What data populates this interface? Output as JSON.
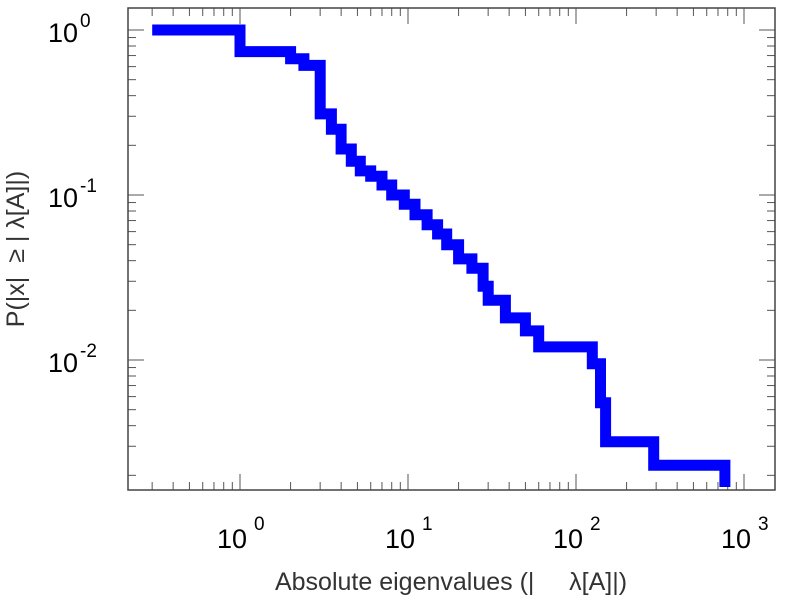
{
  "chart_data": {
    "type": "line",
    "title": "",
    "xlabel": "Absolute eigenvalues (|     λ[A]|)",
    "ylabel": "P(|x|  ≥ | λ[A]|)",
    "x_scale": "log",
    "y_scale": "log",
    "xlim": [
      0.2,
      1000
    ],
    "ylim": [
      0.0017,
      1.3
    ],
    "grid": false,
    "legend": "none",
    "x_ticks": [
      {
        "base": "10",
        "exp": "0",
        "value": 1
      },
      {
        "base": "10",
        "exp": "1",
        "value": 10
      },
      {
        "base": "10",
        "exp": "2",
        "value": 100
      },
      {
        "base": "10",
        "exp": "3",
        "value": 1000
      }
    ],
    "y_ticks": [
      {
        "base": "10",
        "exp": "0",
        "value": 1
      },
      {
        "base": "10",
        "exp": "-1",
        "value": 0.1
      },
      {
        "base": "10",
        "exp": "-2",
        "value": 0.01
      }
    ],
    "series": [
      {
        "color": "#0000ff",
        "step": true,
        "points": [
          [
            0.3,
            1.0
          ],
          [
            1.0,
            1.0
          ],
          [
            1.0,
            0.74
          ],
          [
            2.0,
            0.74
          ],
          [
            2.0,
            0.67
          ],
          [
            2.4,
            0.67
          ],
          [
            2.4,
            0.61
          ],
          [
            3.0,
            0.61
          ],
          [
            3.0,
            0.31
          ],
          [
            3.5,
            0.31
          ],
          [
            3.5,
            0.25
          ],
          [
            4.0,
            0.25
          ],
          [
            4.0,
            0.19
          ],
          [
            4.6,
            0.19
          ],
          [
            4.6,
            0.16
          ],
          [
            5.2,
            0.16
          ],
          [
            5.2,
            0.14
          ],
          [
            6.0,
            0.14
          ],
          [
            6.0,
            0.13
          ],
          [
            7.0,
            0.13
          ],
          [
            7.0,
            0.115
          ],
          [
            8.0,
            0.115
          ],
          [
            8.0,
            0.1
          ],
          [
            9.5,
            0.1
          ],
          [
            9.5,
            0.088
          ],
          [
            11.0,
            0.088
          ],
          [
            11.0,
            0.076
          ],
          [
            13.0,
            0.076
          ],
          [
            13.0,
            0.066
          ],
          [
            15.0,
            0.066
          ],
          [
            15.0,
            0.058
          ],
          [
            17.0,
            0.058
          ],
          [
            17.0,
            0.05
          ],
          [
            20.0,
            0.05
          ],
          [
            20.0,
            0.041
          ],
          [
            24.0,
            0.041
          ],
          [
            24.0,
            0.036
          ],
          [
            28.0,
            0.036
          ],
          [
            28.0,
            0.028
          ],
          [
            30.0,
            0.028
          ],
          [
            30.0,
            0.023
          ],
          [
            38.0,
            0.023
          ],
          [
            38.0,
            0.018
          ],
          [
            50.0,
            0.018
          ],
          [
            50.0,
            0.015
          ],
          [
            60.0,
            0.015
          ],
          [
            60.0,
            0.012
          ],
          [
            125.0,
            0.012
          ],
          [
            125.0,
            0.0095
          ],
          [
            140.0,
            0.0095
          ],
          [
            140.0,
            0.0055
          ],
          [
            150.0,
            0.0055
          ],
          [
            150.0,
            0.0032
          ],
          [
            290.0,
            0.0032
          ],
          [
            290.0,
            0.0023
          ],
          [
            770.0,
            0.0023
          ],
          [
            770.0,
            0.0017
          ]
        ]
      }
    ]
  }
}
